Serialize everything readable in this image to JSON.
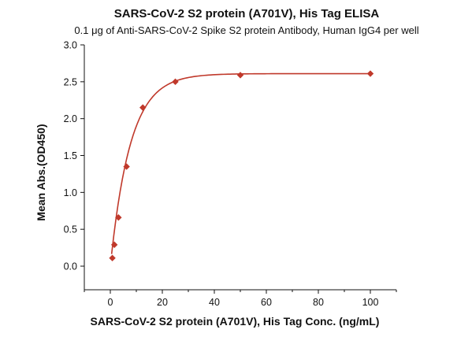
{
  "chart_data": {
    "type": "scatter",
    "title": "SARS-CoV-2 S2 protein (A701V), His Tag ELISA",
    "subtitle": "0.1 μg of Anti-SARS-CoV-2 Spike S2 protein Antibody, Human IgG4 per well",
    "xlabel": "SARS-CoV-2 S2 protein (A701V), His Tag Conc. (ng/mL)",
    "ylabel": "Mean Abs.(OD450)",
    "xlim": [
      -10,
      110
    ],
    "ylim": [
      -0.32,
      3.0
    ],
    "x_ticks": [
      {
        "value": 0,
        "label": "0"
      },
      {
        "value": 20,
        "label": "20"
      },
      {
        "value": 40,
        "label": "40"
      },
      {
        "value": 60,
        "label": "60"
      },
      {
        "value": 80,
        "label": "80"
      },
      {
        "value": 100,
        "label": "100"
      }
    ],
    "y_ticks": [
      {
        "value": 0.0,
        "label": "0.0"
      },
      {
        "value": 0.5,
        "label": "0.5"
      },
      {
        "value": 1.0,
        "label": "1.0"
      },
      {
        "value": 1.5,
        "label": "1.5"
      },
      {
        "value": 2.0,
        "label": "2.0"
      },
      {
        "value": 2.5,
        "label": "2.5"
      },
      {
        "value": 3.0,
        "label": "3.0"
      }
    ],
    "grid": false,
    "legend": "none",
    "series": [
      {
        "color": "#c0392b",
        "marker": "diamond",
        "points": [
          {
            "x": 0.78,
            "y": 0.11
          },
          {
            "x": 1.56,
            "y": 0.29
          },
          {
            "x": 3.13,
            "y": 0.66
          },
          {
            "x": 6.25,
            "y": 1.35
          },
          {
            "x": 12.5,
            "y": 2.15
          },
          {
            "x": 25,
            "y": 2.5
          },
          {
            "x": 50,
            "y": 2.59
          },
          {
            "x": 100,
            "y": 2.61
          }
        ]
      }
    ]
  }
}
